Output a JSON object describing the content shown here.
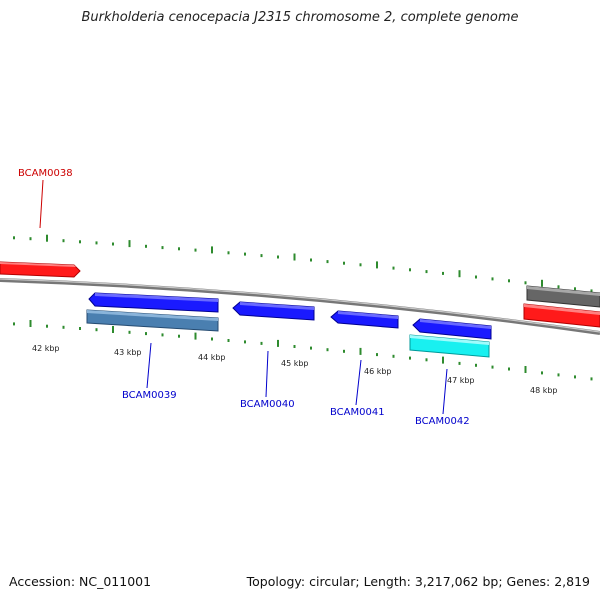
{
  "title": "Burkholderia cenocepacia J2315 chromosome 2, complete genome",
  "footer": {
    "accession": "Accession: NC_011001",
    "summary": "Topology: circular; Length: 3,217,062 bp; Genes: 2,819"
  },
  "colors": {
    "backbone": "#8a8a8a",
    "tick": "#2e8b2e",
    "gene_red": "#ff1a1a",
    "gene_blue": "#1a1aff",
    "gene_steel": "#4a7fb0",
    "gene_cyan": "#19f0f0",
    "gene_gray": "#666666",
    "label_red": "#cc0000",
    "label_blue": "#0000cc"
  },
  "scale_labels": [
    "42 kbp",
    "43 kbp",
    "44 kbp",
    "45 kbp",
    "46 kbp",
    "47 kbp",
    "48 kbp"
  ],
  "genes": [
    {
      "locus_tag": "BCAM0038",
      "color": "gene_red"
    },
    {
      "locus_tag": "BCAM0039",
      "color": "gene_blue"
    },
    {
      "locus_tag": "BCAM0040",
      "color": "gene_blue"
    },
    {
      "locus_tag": "BCAM0041",
      "color": "gene_blue"
    },
    {
      "locus_tag": "BCAM0042",
      "color": "gene_blue"
    }
  ]
}
